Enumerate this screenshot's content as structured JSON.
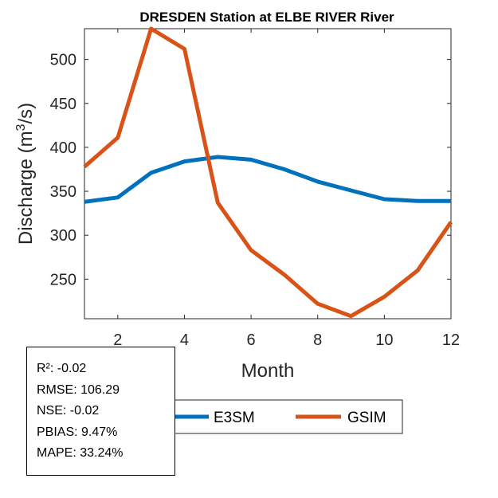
{
  "chart_data": {
    "type": "line",
    "title": "DRESDEN  Station at  ELBE RIVER  River",
    "xlabel": "Month",
    "ylabel": "Discharge (m³/s)",
    "ylabel_parts": {
      "pre": "Discharge (m",
      "sup": "3",
      "post": "/s)"
    },
    "xlim": [
      1,
      12
    ],
    "ylim": [
      205,
      535
    ],
    "xticks": [
      2,
      4,
      6,
      8,
      10,
      12
    ],
    "yticks": [
      250,
      300,
      350,
      400,
      450,
      500
    ],
    "x": [
      1,
      2,
      3,
      4,
      5,
      6,
      7,
      8,
      9,
      10,
      11,
      12
    ],
    "series": [
      {
        "name": "E3SM",
        "color": "#0072BD",
        "values": [
          338,
          343,
          371,
          384,
          389,
          386,
          375,
          361,
          351,
          341,
          339,
          339
        ]
      },
      {
        "name": "GSIM",
        "color": "#D95319",
        "values": [
          378,
          411,
          535,
          512,
          337,
          283,
          255,
          222,
          208,
          230,
          260,
          315
        ]
      }
    ],
    "legend": {
      "position": "bottom",
      "entries": [
        "E3SM",
        "GSIM"
      ]
    }
  },
  "stats": {
    "r2": "R²: -0.02",
    "rmse": "RMSE: 106.29",
    "nse": "NSE: -0.02",
    "pbias": "PBIAS: 9.47%",
    "mape": "MAPE: 33.24%"
  }
}
